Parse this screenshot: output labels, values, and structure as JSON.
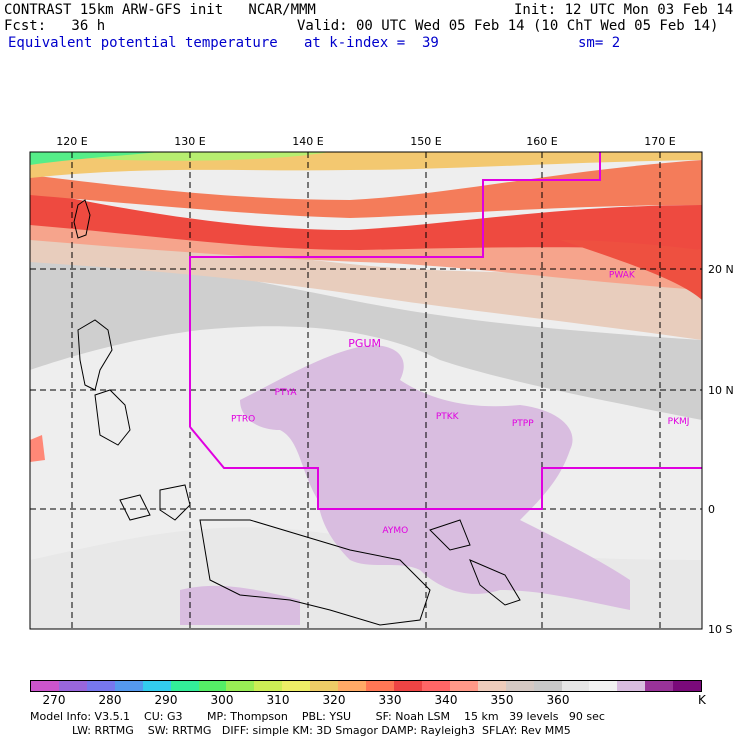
{
  "header": {
    "left1": "CONTRAST 15km ARW-GFS init   NCAR/MMM",
    "left2": "Fcst:   36 h",
    "left3": "Equivalent potential temperature",
    "right1": "Init: 12 UTC Mon 03 Feb 14",
    "right2": "Valid: 00 UTC Wed 05 Feb 14 (10 ChT Wed 05 Feb 14)",
    "kindex": "at k-index =  39",
    "sm": "sm= 2"
  },
  "map": {
    "lon_labels": [
      "120 E",
      "130 E",
      "140 E",
      "150 E",
      "160 E",
      "170 E"
    ],
    "lat_labels": [
      "20 N",
      "10 N",
      "0",
      "10 S"
    ],
    "stations": [
      {
        "id": "PGUM",
        "lon": 144.8,
        "lat": 13.5
      },
      {
        "id": "PTYA",
        "lon": 138.1,
        "lat": 9.5
      },
      {
        "id": "PTRO",
        "lon": 134.5,
        "lat": 7.3
      },
      {
        "id": "PTKK",
        "lon": 151.8,
        "lat": 7.5
      },
      {
        "id": "PTPP",
        "lon": 158.2,
        "lat": 6.9
      },
      {
        "id": "PKMJ",
        "lon": 171.4,
        "lat": 7.1
      },
      {
        "id": "PWAK",
        "lon": 166.6,
        "lat": 19.3
      },
      {
        "id": "AYMO",
        "lon": 147.4,
        "lat": -2.0
      }
    ],
    "colors": {
      "domain_line": "#e000e0",
      "grid": "#000000"
    }
  },
  "colorbar": {
    "labels": [
      "270",
      "280",
      "290",
      "300",
      "310",
      "320",
      "330",
      "340",
      "350",
      "360"
    ],
    "unit": "K",
    "colors": [
      "#cc55cc",
      "#9966dd",
      "#7777ee",
      "#5599ee",
      "#33ccee",
      "#33ee99",
      "#55ee66",
      "#99ee55",
      "#ccee55",
      "#eeee66",
      "#eecc66",
      "#ffaa66",
      "#ff7755",
      "#ee4444",
      "#ff6666",
      "#ff9988",
      "#eeccbb",
      "#d5c9c4",
      "#c8c8c8",
      "#e6e6e6",
      "#f2f2f2",
      "#d9bde0",
      "#993399",
      "#7a0a7a"
    ]
  },
  "footer": {
    "line1": "Model Info: V3.5.1    CU: G3       MP: Thompson    PBL: YSU       SF: Noah LSM    15 km   39 levels   90 sec",
    "line2": "            LW: RRTMG    SW: RRTMG   DIFF: simple KM: 3D Smagor DAMP: Rayleigh3  SFLAY: Rev MM5"
  }
}
